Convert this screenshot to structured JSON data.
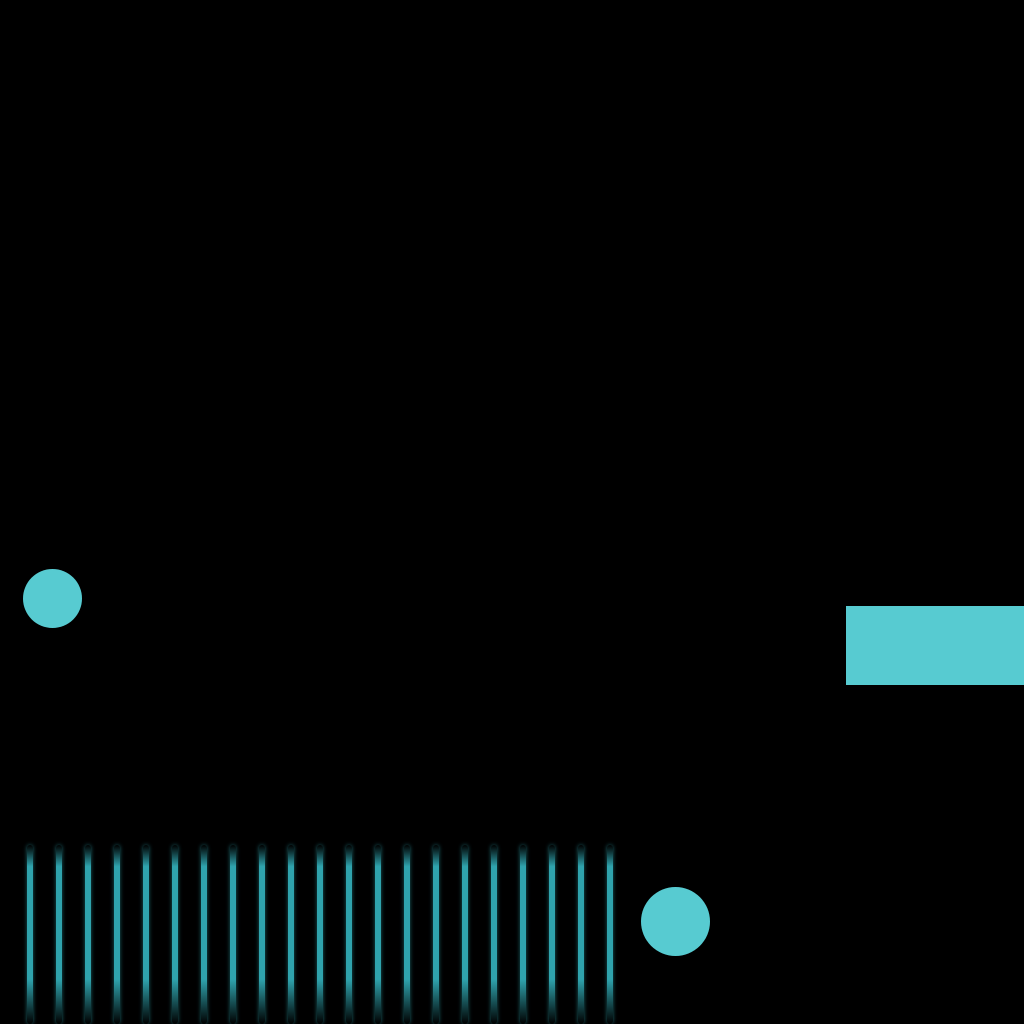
{
  "scene": {
    "background_color": "#000000",
    "accent_color": "#57cbd1",
    "stripe_color": "#2fa3ad",
    "objects": {
      "left_ball": {
        "shape": "circle",
        "color": "#57cbd1"
      },
      "bottom_ball": {
        "shape": "circle",
        "color": "#57cbd1"
      },
      "platform": {
        "shape": "rectangle",
        "color": "#57cbd1"
      },
      "stripe_field": {
        "shape": "vertical-stripes",
        "count": 21,
        "color": "#2fa3ad"
      }
    }
  }
}
